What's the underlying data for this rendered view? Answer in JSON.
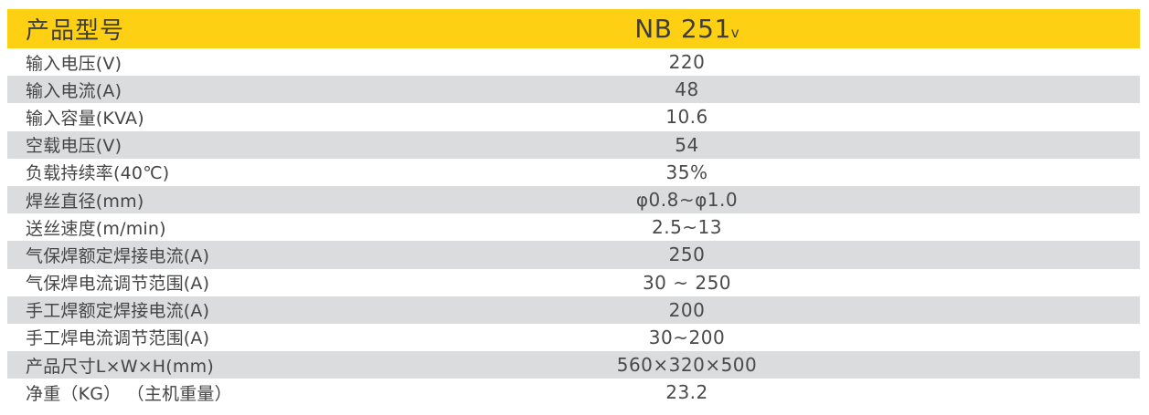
{
  "table": {
    "header": {
      "label": "产品型号",
      "model": "NB 251",
      "model_subscript": "v"
    },
    "rows": [
      {
        "label": "输入电压(V)",
        "value": "220"
      },
      {
        "label": "输入电流(A)",
        "value": "48"
      },
      {
        "label": "输入容量(KVA)",
        "value": "10.6"
      },
      {
        "label": "空载电压(V)",
        "value": "54"
      },
      {
        "label": "负载持续率(40℃)",
        "value": "35%"
      },
      {
        "label": "焊丝直径(mm)",
        "value": "φ0.8~φ1.0"
      },
      {
        "label": "送丝速度(m/min)",
        "value": "2.5~13"
      },
      {
        "label": "气保焊额定焊接电流(A)",
        "value": "250"
      },
      {
        "label": "气保焊电流调节范围(A)",
        "value": "30 ~ 250"
      },
      {
        "label": "手工焊额定焊接电流(A)",
        "value": "200"
      },
      {
        "label": "手工焊电流调节范围(A)",
        "value": "30~200"
      },
      {
        "label": "产品尺寸L×W×H(mm)",
        "value": "560×320×500"
      },
      {
        "label": "净重（KG） （主机重量）",
        "value": "23.2"
      }
    ],
    "colors": {
      "header_bg": "#FDD013",
      "alt_row_bg": "#DBDCDD",
      "header_text": "#3D3D3D",
      "label_text": "#454545",
      "value_text": "#4A4A4A"
    }
  }
}
